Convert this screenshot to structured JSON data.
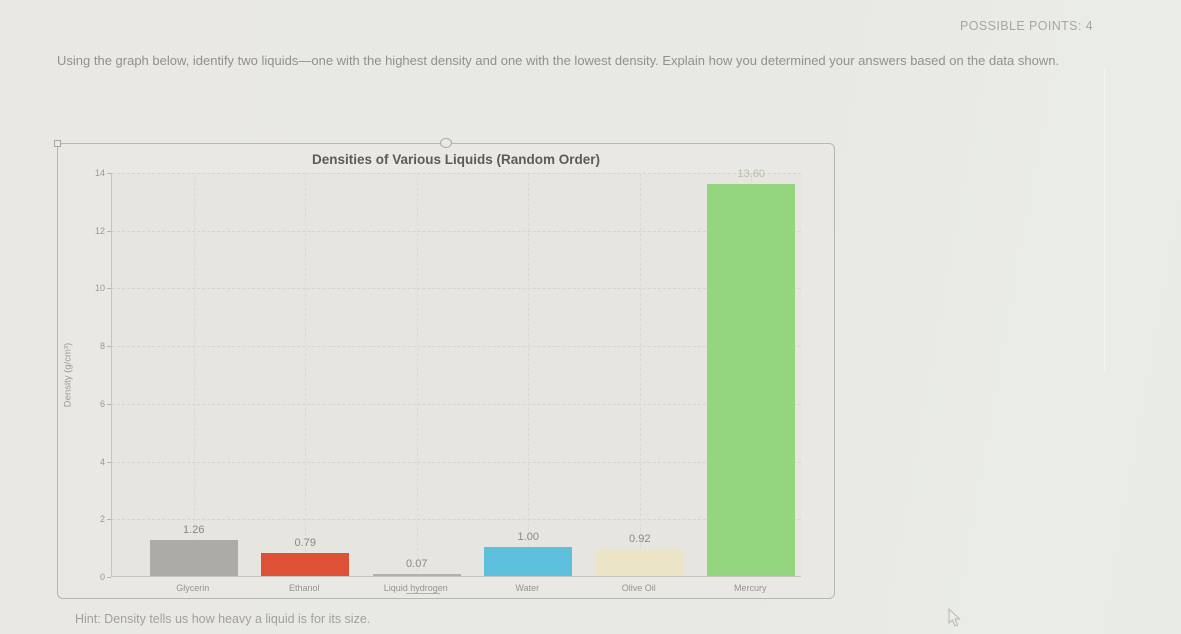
{
  "page": {
    "possible_points": "POSSIBLE POINTS: 4",
    "question": "Using the graph below, identify two liquids—one with the highest density and one with the lowest density. Explain how you determined your answers based on the data shown.",
    "hint": "Hint: Density tells us how heavy a liquid is for its size."
  },
  "chart_data": {
    "type": "bar",
    "title": "Densities of Various Liquids (Random Order)",
    "xlabel": "",
    "ylabel": "Density (g/cm³)",
    "ylim": [
      0,
      14
    ],
    "yticks": [
      0,
      2,
      4,
      6,
      8,
      10,
      12,
      14
    ],
    "grid": true,
    "legend": "none",
    "categories": [
      "Glycerin",
      "Ethanol",
      "Liquid hydrogen",
      "Water",
      "Olive Oil",
      "Mercury"
    ],
    "values": [
      1.26,
      0.79,
      0.07,
      1.0,
      0.92,
      13.6
    ],
    "value_labels": [
      "1.26",
      "0.79",
      "0.07",
      "1.00",
      "0.92",
      "13.60"
    ],
    "bar_colors": [
      "#adaba5",
      "#dd5136",
      "#b3b1ab",
      "#5cc0dd",
      "#ebe4c6",
      "#93d67e"
    ],
    "value_label_colors": [
      "#8b8882",
      "#8b8882",
      "#8b8882",
      "#8b8882",
      "#8b8882",
      "#b5bfab"
    ]
  },
  "colors": {
    "page_background": "#e9e8e4",
    "plot_background": "#e7e5e0",
    "chart_border": "#b8b6b0",
    "gridline": "#d6d4ce"
  }
}
